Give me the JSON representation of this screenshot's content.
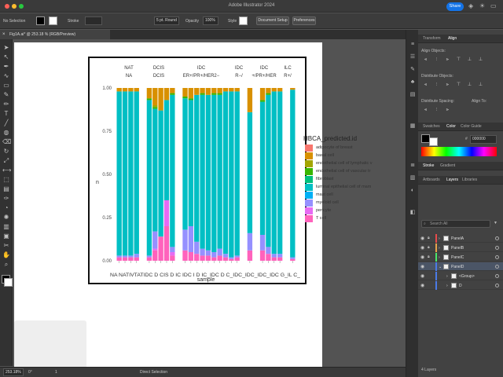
{
  "app": {
    "title": "Adobe Illustrator 2024",
    "share_label": "Share"
  },
  "control_bar": {
    "selection": "No Selection",
    "stroke_label": "Stroke",
    "brush": "5 pt. Round",
    "opacity_label": "Opacity",
    "opacity_value": "100%",
    "style_label": "Style",
    "document_setup": "Document Setup",
    "preferences": "Preferences"
  },
  "document_tab": {
    "label": "Fig1A.ai* @ 253.18 % (RGB/Preview)"
  },
  "status_bar": {
    "zoom": "253.18%",
    "rotation": "0°",
    "artboard_index": "1",
    "tool": "Direct Selection"
  },
  "tools": [
    "selection-tool",
    "direct-selection-tool",
    "pen-tool",
    "curvature-tool",
    "rectangle-tool",
    "brush-tool",
    "pencil-tool",
    "type-tool",
    "line-tool",
    "shape-builder-tool",
    "eraser-tool",
    "rotate-tool",
    "scale-tool",
    "width-tool",
    "free-transform-tool",
    "gradient-tool",
    "eyedropper-tool",
    "blend-tool",
    "symbol-sprayer-tool",
    "graph-tool",
    "artboard-tool",
    "slice-tool",
    "hand-tool",
    "zoom-tool"
  ],
  "panels": {
    "transform_tab": "Transform",
    "align_tab": "Align",
    "align_objects": "Align Objects:",
    "distribute_objects": "Distribute Objects:",
    "distribute_spacing": "Distribute Spacing:",
    "align_to": "Align To:",
    "swatches_tab": "Swatches",
    "color_tab": "Color",
    "color_guide_tab": "Color Guide",
    "hex_value": "000000",
    "stroke_tab": "Stroke",
    "gradient_tab": "Gradient",
    "artboards_tab": "Artboards",
    "layers_tab": "Layers",
    "libraries_tab": "Libraries",
    "search_placeholder": "Search All",
    "layers": [
      {
        "name": "PanelA",
        "bar": "#e84b4b"
      },
      {
        "name": "PanelB",
        "bar": "#e8a34b"
      },
      {
        "name": "PanelC",
        "bar": "#4be86a"
      },
      {
        "name": "PanelD",
        "bar": "#4b7be8"
      },
      {
        "name": "<Group>",
        "bar": "#4b7be8"
      },
      {
        "name": "D",
        "bar": "#4b7be8"
      }
    ],
    "layers_count": "4 Layers"
  },
  "chart_data": {
    "type": "bar",
    "subtype": "stacked-100-percent",
    "ylabel": "n",
    "xlabel": "sample",
    "yticks": [
      "0.00",
      "0.25",
      "0.50",
      "0.75",
      "1.00"
    ],
    "ylim": [
      0,
      1
    ],
    "facet_top": [
      "NAT",
      "DCIS",
      "IDC",
      "IDC",
      "IDC",
      "ILC"
    ],
    "facet_bottom": [
      "NA",
      "DCIS",
      "ER+/PR+/HER2−",
      "R−/",
      "+/PR+/HER",
      "R+/"
    ],
    "x_tick_text": "NA NATIVTATIDC D CIS D IC IDC I D IC_IDC D C_IDC_IDC_IDC_IDC G_IL C_",
    "legend_title": "HBCA_predicted.id",
    "legend": [
      {
        "label": "adipocyte of breast",
        "color": "#f8766d"
      },
      {
        "label": "basal cell",
        "color": "#d89000"
      },
      {
        "label": "endothelial cell of lymphatic v",
        "color": "#a3a500"
      },
      {
        "label": "endothelial cell of vascular tr",
        "color": "#39b600"
      },
      {
        "label": "fibroblast",
        "color": "#00bf7d"
      },
      {
        "label": "luminal epithelial cell of mam",
        "color": "#00bfc4"
      },
      {
        "label": "mast cell",
        "color": "#00b0f6"
      },
      {
        "label": "myeloid cell",
        "color": "#9590ff"
      },
      {
        "label": "pericyte",
        "color": "#e76bf3"
      },
      {
        "label": "T cell",
        "color": "#ff62bc"
      }
    ],
    "series_colors_order": [
      "#ff62bc",
      "#e76bf3",
      "#9590ff",
      "#00b0f6",
      "#00bfc4",
      "#00bf7d",
      "#39b600",
      "#a3a500",
      "#d89000",
      "#f8766d"
    ],
    "bars": [
      [
        0.02,
        0.0,
        0.01,
        0.0,
        0.95,
        0.0,
        0.0,
        0.0,
        0.02,
        0.0
      ],
      [
        0.02,
        0.0,
        0.01,
        0.0,
        0.95,
        0.0,
        0.0,
        0.0,
        0.02,
        0.0
      ],
      [
        0.02,
        0.0,
        0.01,
        0.0,
        0.95,
        0.0,
        0.0,
        0.0,
        0.02,
        0.0
      ],
      [
        0.02,
        0.0,
        0.02,
        0.0,
        0.94,
        0.0,
        0.0,
        0.0,
        0.02,
        0.0
      ],
      [
        0.02,
        0.0,
        0.01,
        0.0,
        0.9,
        0.0,
        0.01,
        0.0,
        0.06,
        0.0
      ],
      [
        0.06,
        0.01,
        0.1,
        0.0,
        0.71,
        0.0,
        0.01,
        0.01,
        0.1,
        0.0
      ],
      [
        0.14,
        0.0,
        0.0,
        0.0,
        0.73,
        0.0,
        0.0,
        0.0,
        0.13,
        0.0
      ],
      [
        0.2,
        0.15,
        0.0,
        0.0,
        0.58,
        0.0,
        0.0,
        0.0,
        0.07,
        0.0
      ],
      [
        0.03,
        0.02,
        0.03,
        0.0,
        0.88,
        0.0,
        0.01,
        0.0,
        0.03,
        0.0
      ],
      [
        0.06,
        0.0,
        0.12,
        0.0,
        0.76,
        0.0,
        0.01,
        0.0,
        0.05,
        0.0
      ],
      [
        0.05,
        0.0,
        0.15,
        0.0,
        0.73,
        0.0,
        0.01,
        0.0,
        0.06,
        0.0
      ],
      [
        0.04,
        0.0,
        0.07,
        0.0,
        0.85,
        0.0,
        0.0,
        0.0,
        0.04,
        0.0
      ],
      [
        0.03,
        0.0,
        0.04,
        0.0,
        0.89,
        0.0,
        0.01,
        0.0,
        0.03,
        0.0
      ],
      [
        0.03,
        0.0,
        0.03,
        0.0,
        0.9,
        0.0,
        0.0,
        0.0,
        0.04,
        0.0
      ],
      [
        0.02,
        0.0,
        0.03,
        0.0,
        0.91,
        0.0,
        0.01,
        0.0,
        0.03,
        0.0
      ],
      [
        0.03,
        0.0,
        0.04,
        0.0,
        0.89,
        0.0,
        0.01,
        0.0,
        0.03,
        0.0
      ],
      [
        0.02,
        0.0,
        0.02,
        0.0,
        0.94,
        0.0,
        0.0,
        0.0,
        0.02,
        0.0
      ],
      [
        0.01,
        0.0,
        0.01,
        0.0,
        0.96,
        0.0,
        0.0,
        0.0,
        0.02,
        0.0
      ],
      [
        0.02,
        0.0,
        0.01,
        0.0,
        0.95,
        0.0,
        0.0,
        0.0,
        0.02,
        0.0
      ],
      [
        0.06,
        0.0,
        0.1,
        0.0,
        0.7,
        0.0,
        0.0,
        0.0,
        0.14,
        0.0
      ],
      [
        0.06,
        0.0,
        0.09,
        0.0,
        0.77,
        0.0,
        0.01,
        0.0,
        0.07,
        0.0
      ],
      [
        0.04,
        0.0,
        0.04,
        0.0,
        0.88,
        0.0,
        0.01,
        0.0,
        0.03,
        0.0
      ],
      [
        0.02,
        0.0,
        0.02,
        0.0,
        0.94,
        0.0,
        0.0,
        0.0,
        0.02,
        0.0
      ],
      [
        0.02,
        0.0,
        0.02,
        0.0,
        0.94,
        0.0,
        0.0,
        0.0,
        0.02,
        0.0
      ],
      [
        0.01,
        0.0,
        0.01,
        0.0,
        0.97,
        0.0,
        0.0,
        0.0,
        0.01,
        0.0
      ]
    ],
    "gap_after": [
      3,
      8,
      18,
      19,
      23
    ]
  }
}
